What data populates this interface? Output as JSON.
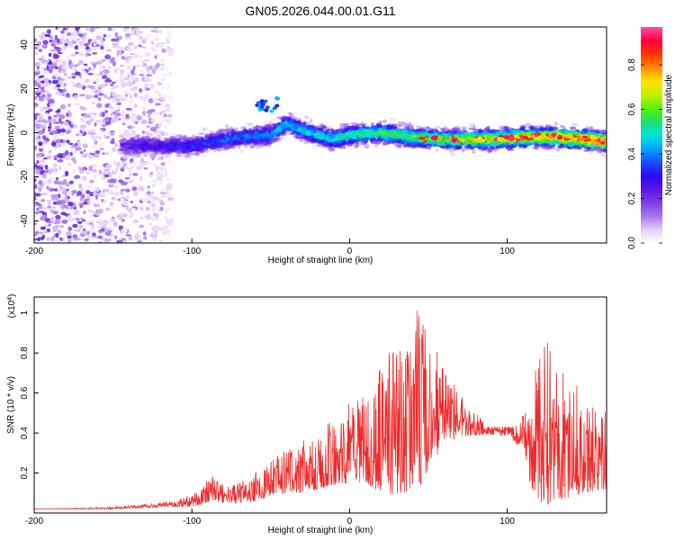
{
  "title": "GN05.2026.044.00.01.G11",
  "chart_data": [
    {
      "type": "heatmap",
      "title": "GN05.2026.044.00.01.G11",
      "xlabel": "Height of straight line (km)",
      "ylabel": "Frequency (Hz)",
      "xlim": [
        -200,
        163
      ],
      "ylim": [
        -50,
        48
      ],
      "xticks": [
        -200,
        -100,
        0,
        100
      ],
      "yticks": [
        -40,
        -20,
        0,
        20,
        40
      ],
      "ridge": {
        "description_x_km": [
          -140,
          -100,
          -70,
          -50,
          -40,
          -25,
          -10,
          0,
          20,
          40,
          60,
          90,
          110,
          130,
          150,
          163
        ],
        "frequency_hz": [
          -6,
          -6,
          -2,
          -1,
          4,
          0,
          -3,
          -1,
          0,
          -2,
          -3,
          -3,
          -2,
          -2,
          -3,
          -4
        ]
      },
      "noise_region_km": [
        -200,
        -125
      ],
      "colorbar": {
        "label": "Normalized spectral amplitude",
        "ticks": [
          0.0,
          0.2,
          0.4,
          0.6,
          0.8
        ],
        "range": [
          0,
          0.97
        ],
        "colors": [
          "#ffffff",
          "#e3cdf6",
          "#a974ee",
          "#7d3fe0",
          "#5a12e8",
          "#2a0af2",
          "#1b50ff",
          "#00a6ff",
          "#00e5d8",
          "#1fe06a",
          "#5cf000",
          "#c8f000",
          "#ffe000",
          "#ff8a00",
          "#ff3300",
          "#ff0040",
          "#ff4fa0"
        ]
      }
    },
    {
      "type": "line",
      "xlabel": "Height of straight line (km)",
      "ylabel": "SNR (10 * v/v)",
      "scale_label": "(x10",
      "scale_exp": "4",
      "scale_close": ")",
      "xlim": [
        -200,
        163
      ],
      "ylim": [
        0,
        1.08
      ],
      "xticks": [
        -200,
        -100,
        0,
        100
      ],
      "yticks": [
        0.2,
        0.4,
        0.6,
        0.8,
        1
      ],
      "series_color": "#ee2a2a",
      "envelope": {
        "x_km": [
          -200,
          -150,
          -120,
          -100,
          -88,
          -80,
          -70,
          -60,
          -50,
          -40,
          -30,
          -20,
          -10,
          0,
          10,
          20,
          25,
          30,
          35,
          40,
          45,
          50,
          55,
          60,
          70,
          80,
          90,
          100,
          105,
          110,
          115,
          120,
          125,
          130,
          140,
          150,
          163
        ],
        "peak": [
          0.02,
          0.03,
          0.05,
          0.09,
          0.19,
          0.14,
          0.15,
          0.2,
          0.26,
          0.32,
          0.36,
          0.42,
          0.5,
          0.55,
          0.62,
          0.75,
          0.82,
          0.8,
          0.85,
          0.98,
          1.04,
          0.86,
          0.82,
          0.72,
          0.6,
          0.5,
          0.43,
          0.42,
          0.45,
          0.52,
          0.62,
          0.78,
          0.95,
          0.76,
          0.7,
          0.6,
          0.52
        ],
        "base": [
          0.02,
          0.02,
          0.03,
          0.03,
          0.06,
          0.05,
          0.05,
          0.06,
          0.08,
          0.1,
          0.1,
          0.12,
          0.14,
          0.15,
          0.15,
          0.1,
          0.08,
          0.09,
          0.1,
          0.12,
          0.14,
          0.22,
          0.28,
          0.34,
          0.38,
          0.39,
          0.39,
          0.39,
          0.35,
          0.28,
          0.12,
          0.05,
          0.04,
          0.06,
          0.08,
          0.1,
          0.12
        ]
      }
    }
  ]
}
